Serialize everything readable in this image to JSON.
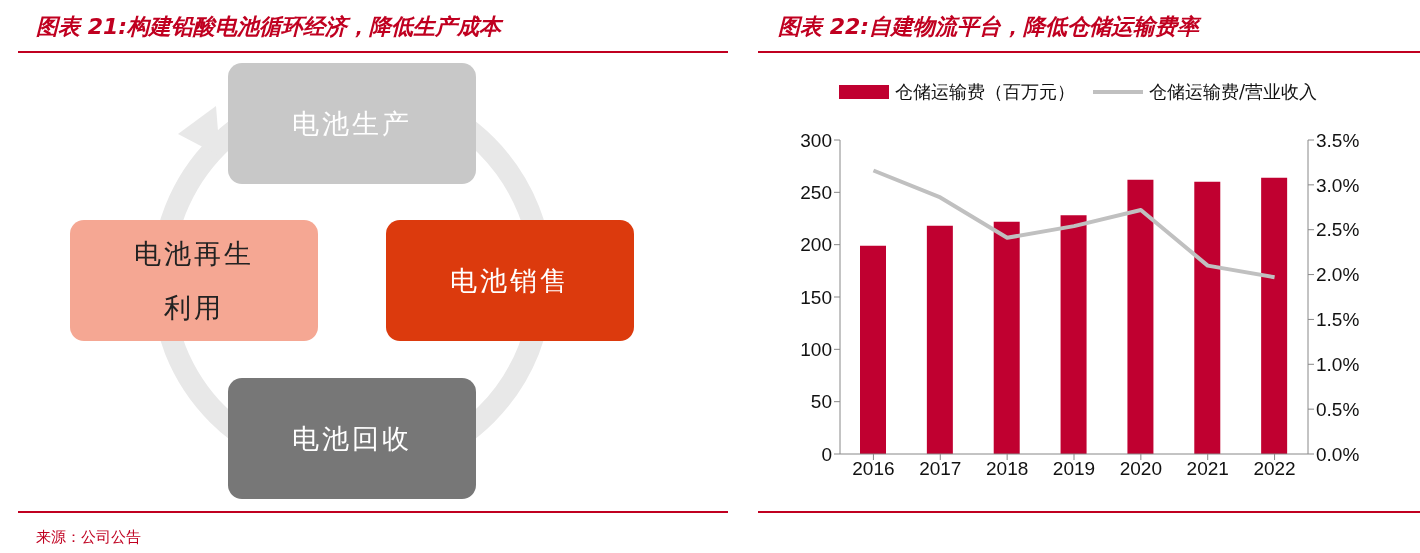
{
  "chart_data": [
    {
      "type": "other",
      "title": "图表 21:构建铅酸电池循环经济，降低生产成本",
      "categories": [
        "电池生产",
        "电池销售",
        "电池回收",
        "电池再生利用"
      ],
      "colors": [
        "#c8c8c8",
        "#dc3a0d",
        "#777777",
        "#f5a793"
      ],
      "annotations": [
        "来源：公司公告"
      ]
    },
    {
      "type": "bar",
      "title": "图表 22:自建物流平台，降低仓储运输费率",
      "categories": [
        "2016",
        "2017",
        "2018",
        "2019",
        "2020",
        "2021",
        "2022"
      ],
      "series": [
        {
          "type": "bar",
          "name": "仓储运输费（百万元）",
          "color": "#c00030",
          "values": [
            199,
            218,
            222,
            228,
            262,
            260,
            264
          ]
        },
        {
          "type": "line",
          "name": "仓储运输费/营业收入",
          "color": "#c0c0c0",
          "axis": "y2",
          "values": [
            3.16,
            2.86,
            2.41,
            2.54,
            2.72,
            2.1,
            1.97
          ]
        }
      ],
      "ylim": [
        0,
        300
      ],
      "yticks": [
        0,
        50,
        100,
        150,
        200,
        250,
        300
      ],
      "y2lim": [
        0,
        3.5
      ],
      "y2ticks": [
        {
          "value": 0,
          "label": "0.0%"
        },
        {
          "value": 0.5,
          "label": "0.5%"
        },
        {
          "value": 1,
          "label": "1.0%"
        },
        {
          "value": 1.5,
          "label": "1.5%"
        },
        {
          "value": 2,
          "label": "2.0%"
        },
        {
          "value": 2.5,
          "label": "2.5%"
        },
        {
          "value": 3,
          "label": "3.0%"
        },
        {
          "value": 3.5,
          "label": "3.5%"
        }
      ],
      "legend": "top",
      "marker": "none"
    }
  ]
}
